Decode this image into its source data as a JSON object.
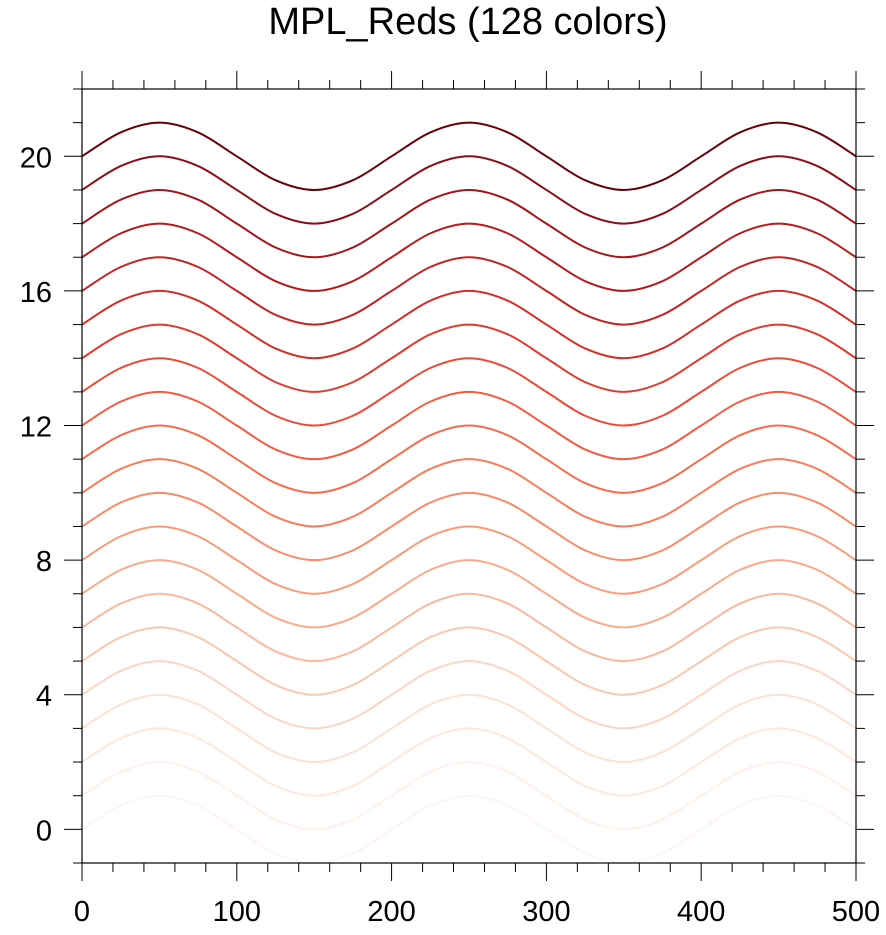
{
  "chart_data": {
    "type": "line",
    "title": "MPL_Reds (128 colors)",
    "xlabel": "",
    "ylabel": "",
    "xlim": [
      0,
      500
    ],
    "ylim": [
      -1,
      22
    ],
    "grid": false,
    "legend": "none",
    "x_ticks": [
      "0",
      "100",
      "200",
      "300",
      "400",
      "500"
    ],
    "y_ticks": [
      "0",
      "4",
      "8",
      "12",
      "16",
      "20"
    ],
    "x": [
      0,
      25,
      50,
      75,
      100,
      125,
      150,
      175,
      200,
      225,
      250,
      275,
      300,
      325,
      350,
      375,
      400,
      425,
      450,
      475,
      500
    ],
    "series": [
      {
        "values": [
          0,
          0.71,
          1,
          0.71,
          0,
          -0.71,
          -1,
          -0.71,
          0,
          0.71,
          1,
          0.71,
          0,
          -0.71,
          -1,
          -0.71,
          0,
          0.71,
          1,
          0.71,
          0
        ],
        "color": "#fff5f0"
      },
      {
        "values": [
          1,
          1.71,
          2,
          1.71,
          1,
          0.29,
          0,
          0.29,
          1,
          1.71,
          2,
          1.71,
          1,
          0.29,
          0,
          0.29,
          1,
          1.71,
          2,
          1.71,
          1
        ],
        "color": "#fff0e9"
      },
      {
        "values": [
          2,
          2.71,
          3,
          2.71,
          2,
          1.29,
          1,
          1.29,
          2,
          2.71,
          3,
          2.71,
          2,
          1.29,
          1,
          1.29,
          2,
          2.71,
          3,
          2.71,
          2
        ],
        "color": "#fee8dd"
      },
      {
        "values": [
          3,
          3.71,
          4,
          3.71,
          3,
          2.29,
          2,
          2.29,
          3,
          3.71,
          4,
          3.71,
          3,
          2.29,
          2,
          2.29,
          3,
          3.71,
          4,
          3.71,
          3
        ],
        "color": "#fee1d3"
      },
      {
        "values": [
          4,
          4.71,
          5,
          4.71,
          4,
          3.29,
          3,
          3.29,
          4,
          4.71,
          5,
          4.71,
          4,
          3.29,
          3,
          3.29,
          4,
          4.71,
          5,
          4.71,
          4
        ],
        "color": "#fdd5c4"
      },
      {
        "values": [
          5,
          5.71,
          6,
          5.71,
          5,
          4.29,
          4,
          4.29,
          5,
          5.71,
          6,
          5.71,
          5,
          4.29,
          4,
          4.29,
          5,
          5.71,
          6,
          5.71,
          5
        ],
        "color": "#fcc7b0"
      },
      {
        "values": [
          6,
          6.71,
          7,
          6.71,
          6,
          5.29,
          5,
          5.29,
          6,
          6.71,
          7,
          6.71,
          6,
          5.29,
          5,
          5.29,
          6,
          6.71,
          7,
          6.71,
          6
        ],
        "color": "#fcb89d"
      },
      {
        "values": [
          7,
          7.71,
          8,
          7.71,
          7,
          6.29,
          6,
          6.29,
          7,
          7.71,
          8,
          7.71,
          7,
          6.29,
          6,
          6.29,
          7,
          7.71,
          8,
          7.71,
          7
        ],
        "color": "#fca98a"
      },
      {
        "values": [
          8,
          8.71,
          9,
          8.71,
          8,
          7.29,
          7,
          7.29,
          8,
          8.71,
          9,
          8.71,
          8,
          7.29,
          7,
          7.29,
          8,
          8.71,
          9,
          8.71,
          8
        ],
        "color": "#fc9a78"
      },
      {
        "values": [
          9,
          9.71,
          10,
          9.71,
          9,
          8.29,
          8,
          8.29,
          9,
          9.71,
          10,
          9.71,
          9,
          8.29,
          8,
          8.29,
          9,
          9.71,
          10,
          9.71,
          9
        ],
        "color": "#fb8b68"
      },
      {
        "values": [
          10,
          10.71,
          11,
          10.71,
          10,
          9.29,
          9,
          9.29,
          10,
          10.71,
          11,
          10.71,
          10,
          9.29,
          9,
          9.29,
          10,
          10.71,
          11,
          10.71,
          10
        ],
        "color": "#fb7c58"
      },
      {
        "values": [
          11,
          11.71,
          12,
          11.71,
          11,
          10.29,
          10,
          10.29,
          11,
          11.71,
          12,
          11.71,
          11,
          10.29,
          10,
          10.29,
          11,
          11.71,
          12,
          11.71,
          11
        ],
        "color": "#f86b4b"
      },
      {
        "values": [
          12,
          12.71,
          13,
          12.71,
          12,
          11.29,
          11,
          11.29,
          12,
          12.71,
          13,
          12.71,
          12,
          11.29,
          11,
          11.29,
          12,
          12.71,
          13,
          12.71,
          12
        ],
        "color": "#f45c41"
      },
      {
        "values": [
          13,
          13.71,
          14,
          13.71,
          13,
          12.29,
          12,
          12.29,
          13,
          13.71,
          14,
          13.71,
          13,
          12.29,
          12,
          12.29,
          13,
          13.71,
          14,
          13.71,
          13
        ],
        "color": "#ec4a37"
      },
      {
        "values": [
          14,
          14.71,
          15,
          14.71,
          14,
          13.29,
          13,
          13.29,
          14,
          14.71,
          15,
          14.71,
          14,
          13.29,
          13,
          13.29,
          14,
          14.71,
          15,
          14.71,
          14
        ],
        "color": "#e13a2e"
      },
      {
        "values": [
          15,
          15.71,
          16,
          15.71,
          15,
          14.29,
          14,
          14.29,
          15,
          15.71,
          16,
          15.71,
          15,
          14.29,
          14,
          14.29,
          15,
          15.71,
          16,
          15.71,
          15
        ],
        "color": "#d42d27"
      },
      {
        "values": [
          16,
          16.71,
          17,
          16.71,
          16,
          15.29,
          15,
          15.29,
          16,
          16.71,
          17,
          16.71,
          16,
          15.29,
          15,
          15.29,
          16,
          16.71,
          17,
          16.71,
          16
        ],
        "color": "#c22423"
      },
      {
        "values": [
          17,
          17.71,
          18,
          17.71,
          17,
          16.29,
          16,
          16.29,
          17,
          17.71,
          18,
          17.71,
          17,
          16.29,
          16,
          16.29,
          17,
          17.71,
          18,
          17.71,
          17
        ],
        "color": "#b41b1f"
      },
      {
        "values": [
          18,
          18.71,
          19,
          18.71,
          18,
          17.29,
          17,
          17.29,
          18,
          18.71,
          19,
          18.71,
          18,
          17.29,
          17,
          17.29,
          18,
          18.71,
          19,
          18.71,
          18
        ],
        "color": "#a3141b"
      },
      {
        "values": [
          19,
          19.71,
          20,
          19.71,
          19,
          18.29,
          18,
          18.29,
          19,
          19.71,
          20,
          19.71,
          19,
          18.29,
          18,
          18.29,
          19,
          19.71,
          20,
          19.71,
          19
        ],
        "color": "#8b0e16"
      },
      {
        "values": [
          20,
          20.71,
          21,
          20.71,
          20,
          19.29,
          19,
          19.29,
          20,
          20.71,
          21,
          20.71,
          20,
          19.29,
          19,
          19.29,
          20,
          20.71,
          21,
          20.71,
          20
        ],
        "color": "#67000d"
      }
    ]
  }
}
